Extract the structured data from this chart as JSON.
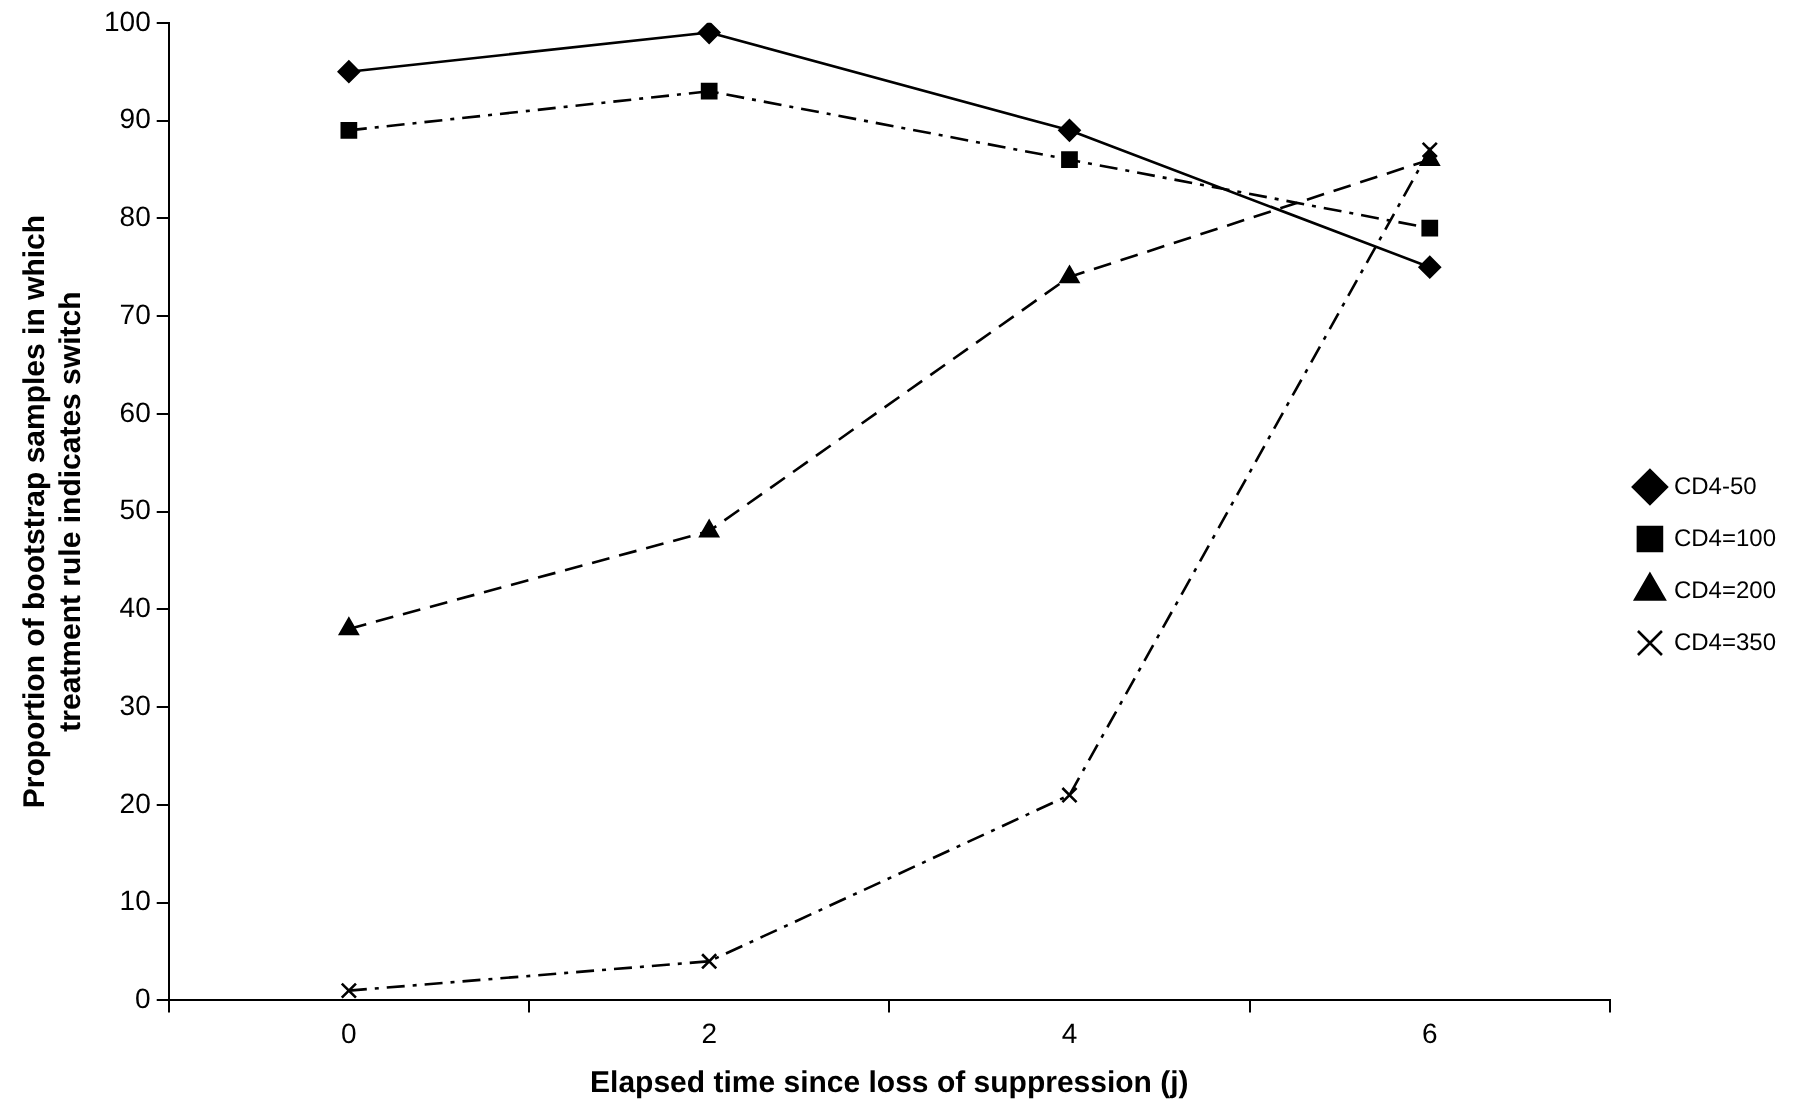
{
  "chart_data": {
    "type": "line",
    "xlabel": "Elapsed time since loss of suppression (j)",
    "ylabel": "Proportion of bootstrap samples in which treatment rule indicates switch",
    "categories": [
      "0",
      "2",
      "4",
      "6"
    ],
    "series": [
      {
        "name": "CD4-50",
        "color": "#000000",
        "values": [
          95,
          99,
          89,
          75
        ],
        "marker": "diamond",
        "line_style": "solid"
      },
      {
        "name": "CD4=100",
        "color": "#000000",
        "values": [
          89,
          93,
          86,
          79
        ],
        "marker": "square",
        "line_style": "dotted"
      },
      {
        "name": "CD4=200",
        "color": "#000000",
        "values": [
          38,
          48,
          74,
          86
        ],
        "marker": "triangle",
        "line_style": "dashed"
      },
      {
        "name": "CD4=350",
        "color": "#000000",
        "values": [
          1,
          4,
          21,
          87
        ],
        "marker": "cross",
        "line_style": "dotted"
      }
    ],
    "ylim": [
      0,
      100
    ],
    "yticks": [
      0,
      10,
      20,
      30,
      40,
      50,
      60,
      70,
      80,
      90,
      100
    ],
    "grid": false,
    "legend": "right"
  }
}
